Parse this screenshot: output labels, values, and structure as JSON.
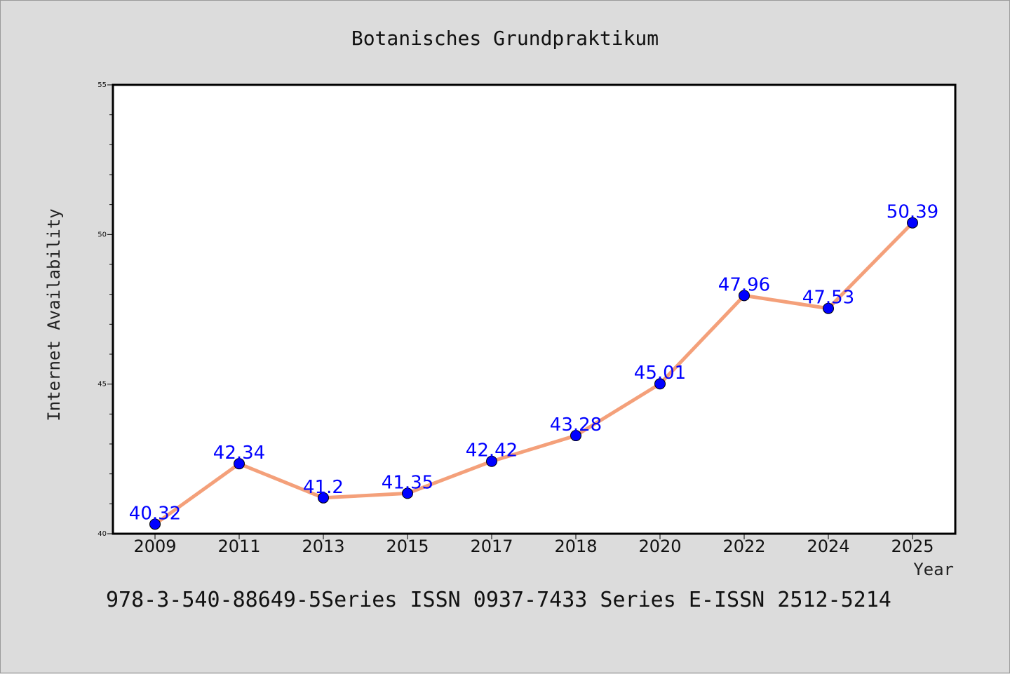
{
  "chart_data": {
    "type": "line",
    "title": "Botanisches Grundpraktikum",
    "xlabel": "Year",
    "ylabel": "Internet Availability",
    "categories": [
      "2009",
      "2011",
      "2013",
      "2015",
      "2017",
      "2018",
      "2020",
      "2022",
      "2024",
      "2025"
    ],
    "series": [
      {
        "values": [
          40.32,
          42.34,
          41.2,
          41.35,
          42.42,
          43.28,
          45.01,
          47.96,
          47.53,
          50.39
        ],
        "labels": [
          "40.32",
          "42.34",
          "41.2",
          "41.35",
          "42.42",
          "43.28",
          "45.01",
          "47.96",
          "47.53",
          "50.39"
        ],
        "line_color": "#f4a07a",
        "marker_color": "#0000ff"
      }
    ],
    "ylim": [
      40,
      55
    ],
    "yticks": [
      "40",
      "45",
      "50",
      "55"
    ],
    "grid": false,
    "legend": "none",
    "footer": "978-3-540-88649-5Series ISSN 0937-7433 Series E-ISSN 2512-5214"
  }
}
